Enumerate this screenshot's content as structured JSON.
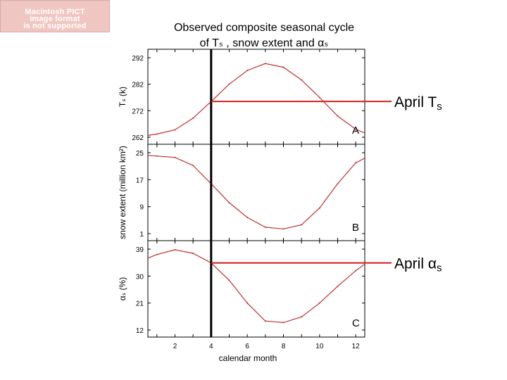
{
  "pict_notice": {
    "line1": "Macintosh PICT",
    "line2": "image format",
    "line3": "is not supported"
  },
  "title": {
    "line1": "Observed composite seasonal cycle",
    "line2": "of Tₛ , snow extent and αₛ"
  },
  "xlabel": "calendar month",
  "callouts": {
    "april_ts": "April T",
    "april_ts_sub": "s",
    "april_alpha": "April α",
    "april_alpha_sub": "s"
  },
  "colors": {
    "series": "#c0302e",
    "axis": "#000000",
    "marker": "#000000",
    "callout_line": "#cc1f1a"
  },
  "chart_data": [
    {
      "type": "line",
      "panel": "A",
      "ylabel": "Tₛ (k)",
      "ylim": [
        262,
        292
      ],
      "yticks": [
        "262",
        "272",
        "282",
        "292"
      ],
      "xlim": [
        0.5,
        12.5
      ],
      "x": [
        0.5,
        1,
        2,
        3,
        4,
        5,
        6,
        7,
        8,
        9,
        10,
        11,
        12,
        12.5
      ],
      "values": [
        262.7,
        263.2,
        264.8,
        269.2,
        275.5,
        282.0,
        287.2,
        289.8,
        288.4,
        283.6,
        277.0,
        270.0,
        265.0,
        263.6
      ]
    },
    {
      "type": "line",
      "panel": "B",
      "ylabel": "snow extent (million km²)",
      "ylim": [
        1,
        25
      ],
      "yticks": [
        "1",
        "9",
        "17",
        "25"
      ],
      "xlim": [
        0.5,
        12.5
      ],
      "x": [
        0.5,
        1,
        2,
        3,
        4,
        5,
        6,
        7,
        8,
        9,
        10,
        11,
        12,
        12.5
      ],
      "values": [
        24.2,
        24.0,
        23.6,
        21.2,
        15.8,
        10.2,
        5.8,
        2.9,
        2.4,
        3.6,
        8.6,
        15.8,
        22.0,
        23.4
      ]
    },
    {
      "type": "line",
      "panel": "C",
      "ylabel": "αₛ (%)",
      "ylim": [
        12,
        39
      ],
      "yticks": [
        "12",
        "21",
        "30",
        "39"
      ],
      "xticks": [
        "2",
        "4",
        "6",
        "8",
        "10",
        "12"
      ],
      "xlim": [
        0.5,
        12.5
      ],
      "x": [
        0.5,
        1,
        2,
        3,
        4,
        5,
        6,
        7,
        8,
        9,
        10,
        11,
        12,
        12.5
      ],
      "values": [
        36.0,
        37.2,
        38.8,
        37.6,
        34.4,
        28.6,
        21.0,
        15.0,
        14.5,
        16.4,
        21.0,
        26.6,
        31.8,
        34.0
      ]
    }
  ],
  "april_marker_month": 4
}
